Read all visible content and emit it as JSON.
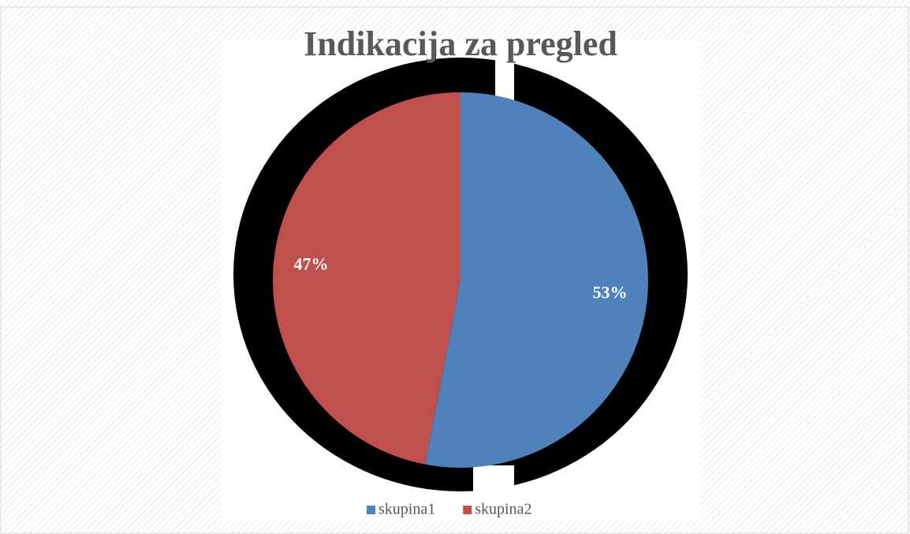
{
  "chart_data": {
    "type": "pie",
    "title": "Indikacija za pregled",
    "categories": [
      "skupina1",
      "skupina2"
    ],
    "values": [
      53,
      47
    ],
    "value_labels": [
      "53%",
      "47%"
    ],
    "colors": [
      "#4f81bd",
      "#c0504d"
    ],
    "legend": "bottom"
  }
}
